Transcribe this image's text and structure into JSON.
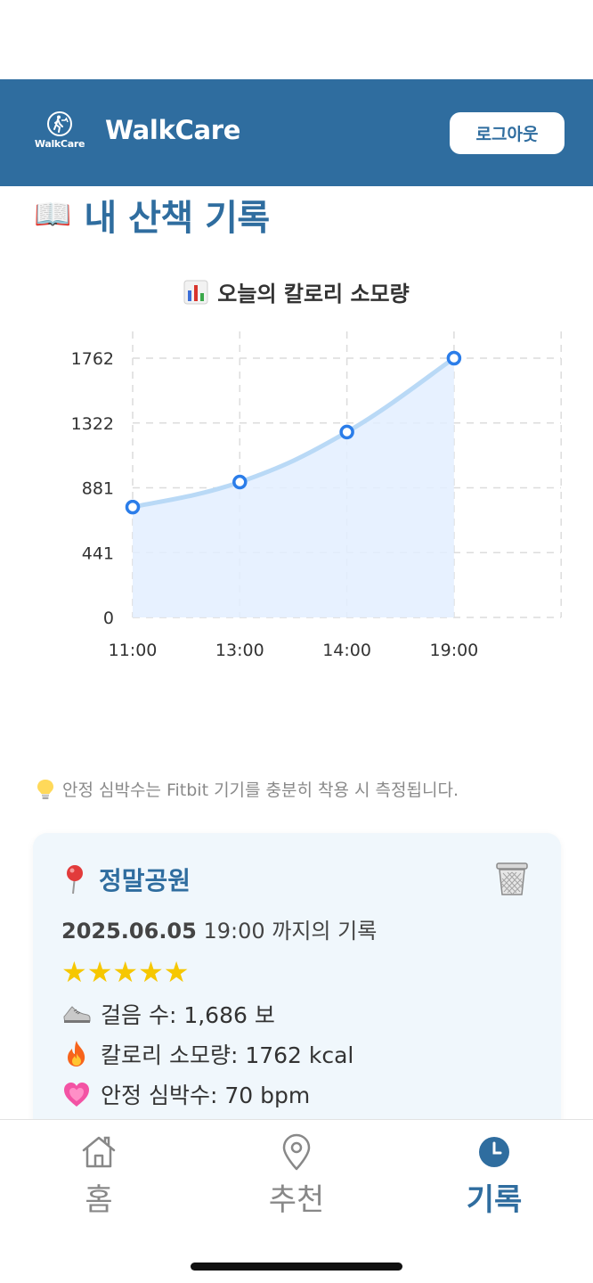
{
  "header": {
    "logo_text": "WalkCare",
    "title": "WalkCare",
    "logout_label": "로그아웃",
    "bg_color": "#2f6d9f"
  },
  "page": {
    "title_icon": "book-icon",
    "title": "내 산책 기록"
  },
  "chart_title": "오늘의 칼로리 소모량",
  "chart_data": {
    "type": "line",
    "title": "오늘의 칼로리 소모량",
    "categories": [
      "11:00",
      "13:00",
      "14:00",
      "19:00"
    ],
    "yticks": [
      "0",
      "441",
      "881",
      "1322",
      "1762"
    ],
    "series": [
      {
        "values": [
          750,
          920,
          1260,
          1762
        ]
      }
    ],
    "ylim": [
      0,
      1762
    ],
    "grid": true,
    "fill": true,
    "line_color": "#b9d9f6",
    "point_color": "#2b7de9",
    "area_color": "#e3efff"
  },
  "tip": {
    "icon": "lightbulb-icon",
    "text": "안정 심박수는 Fitbit 기기를 충분히 착용 시 측정됩니다."
  },
  "record": {
    "place_icon": "pin-icon",
    "place": "정말공원",
    "date": "2025.06.05",
    "time_text": "19:00 까지의 기록",
    "stars": "★★★★★",
    "steps": "걸음 수: 1,686 보",
    "calories": "칼로리 소모량: 1762 kcal",
    "heart_rate": "안정 심박수: 70 bpm"
  },
  "nav": {
    "items": [
      {
        "label": "홈",
        "icon": "house-icon"
      },
      {
        "label": "추천",
        "icon": "location-pin-icon"
      },
      {
        "label": "기록",
        "icon": "clock-icon",
        "active": true
      }
    ]
  }
}
